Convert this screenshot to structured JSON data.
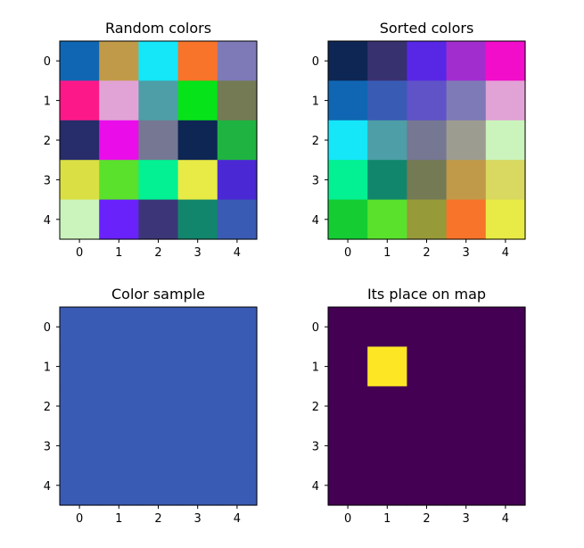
{
  "chart_data": [
    {
      "type": "heatmap",
      "title": "Random colors",
      "x_ticks": [
        "0",
        "1",
        "2",
        "3",
        "4"
      ],
      "y_ticks": [
        "0",
        "1",
        "2",
        "3",
        "4"
      ],
      "cells": [
        [
          "#1066b2",
          "#c09a48",
          "#15e6f8",
          "#f8742a",
          "#7e7ab8"
        ],
        [
          "#fc1889",
          "#e1a3d5",
          "#4d9ea6",
          "#06e318",
          "#747a53"
        ],
        [
          "#272c6a",
          "#ea0dea",
          "#757793",
          "#0e2653",
          "#1fb441"
        ],
        [
          "#dae043",
          "#5ae12c",
          "#03f192",
          "#e8ea45",
          "#4a28d4"
        ],
        [
          "#cbf3bc",
          "#6a22fb",
          "#3c3678",
          "#12866d",
          "#3a5bb4"
        ]
      ]
    },
    {
      "type": "heatmap",
      "title": "Sorted colors",
      "x_ticks": [
        "0",
        "1",
        "2",
        "3",
        "4"
      ],
      "y_ticks": [
        "0",
        "1",
        "2",
        "3",
        "4"
      ],
      "cells": [
        [
          "#0e2653",
          "#38316f",
          "#5827e6",
          "#a22dcf",
          "#f10dca"
        ],
        [
          "#1066b2",
          "#3a5bb4",
          "#6052c7",
          "#7e7ab8",
          "#e1a3d5"
        ],
        [
          "#15e6f8",
          "#4d9ea6",
          "#757793",
          "#9d9c90",
          "#cbf3bc"
        ],
        [
          "#03f192",
          "#12866d",
          "#747a53",
          "#c09a48",
          "#d9d860"
        ],
        [
          "#15cd32",
          "#5ae12c",
          "#979a38",
          "#f8742a",
          "#e8ea45"
        ]
      ]
    },
    {
      "type": "heatmap",
      "title": "Color sample",
      "x_ticks": [
        "0",
        "1",
        "2",
        "3",
        "4"
      ],
      "y_ticks": [
        "0",
        "1",
        "2",
        "3",
        "4"
      ],
      "fill_color": "#3a5bb4"
    },
    {
      "type": "heatmap",
      "title": "Its place on map",
      "x_ticks": [
        "0",
        "1",
        "2",
        "3",
        "4"
      ],
      "y_ticks": [
        "0",
        "1",
        "2",
        "3",
        "4"
      ],
      "colormap": [
        "#440154",
        "#fde725"
      ],
      "values": [
        [
          0,
          0,
          0,
          0,
          0
        ],
        [
          0,
          1,
          0,
          0,
          0
        ],
        [
          0,
          0,
          0,
          0,
          0
        ],
        [
          0,
          0,
          0,
          0,
          0
        ],
        [
          0,
          0,
          0,
          0,
          0
        ]
      ]
    }
  ]
}
